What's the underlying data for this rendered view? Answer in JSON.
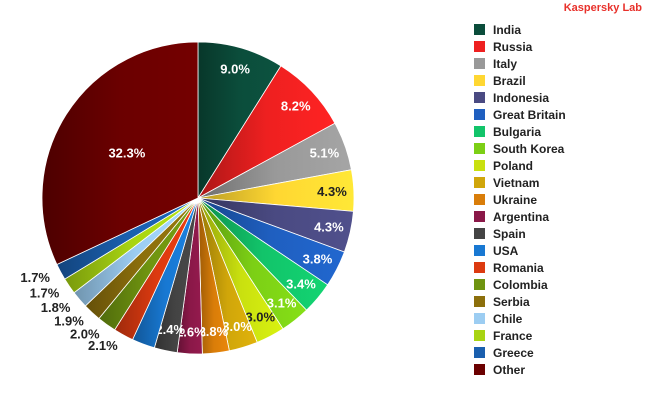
{
  "brand": {
    "text": "Kaspersky Lab",
    "color": "#e8312b"
  },
  "chart_data": {
    "type": "pie",
    "title": "",
    "legend_position": "right",
    "categories": [
      "India",
      "Russia",
      "Italy",
      "Brazil",
      "Indonesia",
      "Great Britain",
      "Bulgaria",
      "South Korea",
      "Poland",
      "Vietnam",
      "Ukraine",
      "Argentina",
      "Spain",
      "USA",
      "Romania",
      "Colombia",
      "Serbia",
      "Chile",
      "France",
      "Greece",
      "Other"
    ],
    "values": [
      9.0,
      8.2,
      5.1,
      4.3,
      4.3,
      3.8,
      3.4,
      3.1,
      3.0,
      3.0,
      2.8,
      2.6,
      2.4,
      2.4,
      2.1,
      2.0,
      1.9,
      1.8,
      1.7,
      1.7,
      32.3
    ],
    "data_labels": [
      "9.0%",
      "8.2%",
      "5.1%",
      "4.3%",
      "4.3%",
      "3.8%",
      "3.4%",
      "3.1%",
      "3.0%",
      "3.0%",
      "2.8%",
      "2.6%",
      "2.4%",
      "",
      "2.1%",
      "2.0%",
      "1.9%",
      "1.8%",
      "1.7%",
      "1.7%",
      "32.3%"
    ],
    "colors": [
      "#0b4d3b",
      "#ee2020",
      "#999999",
      "#ffd732",
      "#4a4a82",
      "#1f5fc0",
      "#12c46a",
      "#7ccf15",
      "#c9e00f",
      "#d0a60a",
      "#d97d09",
      "#8a1848",
      "#444444",
      "#1878d2",
      "#dc3a10",
      "#6f9410",
      "#8c6f0c",
      "#9ccdf2",
      "#a8d412",
      "#1a5fae",
      "#6b0000"
    ]
  }
}
